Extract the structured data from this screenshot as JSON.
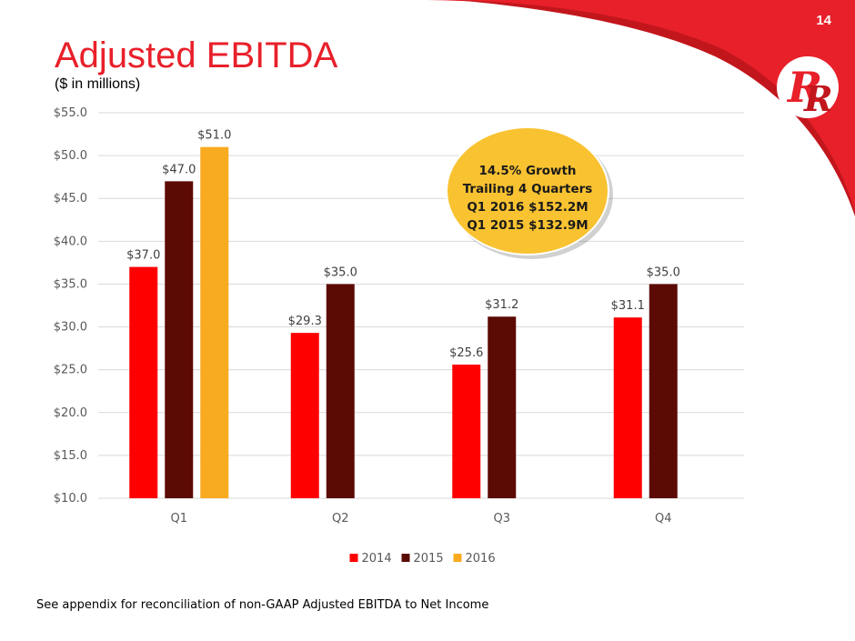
{
  "page": {
    "number": "14"
  },
  "title": "Adjusted EBITDA",
  "subtitle": "($ in millions)",
  "footnote": "See appendix for reconciliation of non-GAAP Adjusted EBITDA to Net Income",
  "callout": {
    "lines": [
      "14.5% Growth",
      "Trailing 4 Quarters",
      "Q1 2016 $152.2M",
      "Q1 2015 $132.9M"
    ],
    "color": "#f9c231"
  },
  "colors": {
    "accent": "#e8202a"
  },
  "chart_data": {
    "type": "bar",
    "categories": [
      "Q1",
      "Q2",
      "Q3",
      "Q4"
    ],
    "series": [
      {
        "name": "2014",
        "color": "#ff0000",
        "values": [
          37.0,
          29.3,
          25.6,
          31.1
        ],
        "labels": [
          "$37.0",
          "$29.3",
          "$25.6",
          "$31.1"
        ]
      },
      {
        "name": "2015",
        "color": "#5c0a04",
        "values": [
          47.0,
          35.0,
          31.2,
          35.0
        ],
        "labels": [
          "$47.0",
          "$35.0",
          "$31.2",
          "$35.0"
        ]
      },
      {
        "name": "2016",
        "color": "#f8ab20",
        "values": [
          51.0,
          null,
          null,
          null
        ],
        "labels": [
          "$51.0",
          null,
          null,
          null
        ]
      }
    ],
    "ylim": [
      10,
      55
    ],
    "yticks": [
      10,
      15,
      20,
      25,
      30,
      35,
      40,
      45,
      50,
      55
    ],
    "ytick_labels": [
      "$10.0",
      "$15.0",
      "$20.0",
      "$25.0",
      "$30.0",
      "$35.0",
      "$40.0",
      "$45.0",
      "$50.0",
      "$55.0"
    ],
    "grid": true,
    "legend": "bottom-center"
  }
}
